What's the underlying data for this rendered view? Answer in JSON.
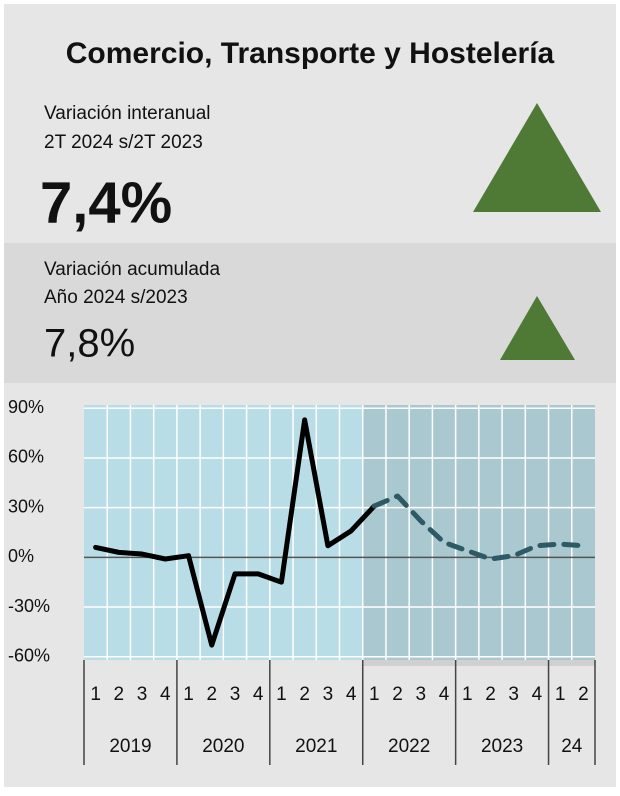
{
  "header": {
    "title": "Comercio, Transporte y Hostelería"
  },
  "kpis": [
    {
      "lines": [
        "Variación interanual",
        "2T 2024 s/2T 2023"
      ],
      "value": "7,4%"
    },
    {
      "lines": [
        "Variación acumulada",
        "Año 2024 s/2023"
      ],
      "value": "7,8%"
    }
  ],
  "chart_data": {
    "type": "line",
    "categories": [
      "1",
      "2",
      "3",
      "4",
      "1",
      "2",
      "3",
      "4",
      "1",
      "2",
      "3",
      "4",
      "1",
      "2",
      "3",
      "4",
      "1",
      "2",
      "3",
      "4",
      "1",
      "2"
    ],
    "groups": [
      {
        "label": "2019",
        "span": 4
      },
      {
        "label": "2020",
        "span": 4
      },
      {
        "label": "2021",
        "span": 4
      },
      {
        "label": "2022",
        "span": 4
      },
      {
        "label": "2023",
        "span": 4
      },
      {
        "label": "24",
        "span": 2
      }
    ],
    "values": [
      6,
      3,
      2,
      -1,
      1,
      -53,
      -10,
      -10,
      -15,
      83,
      7,
      16,
      31,
      37,
      22,
      9,
      4,
      -1,
      1,
      7,
      8,
      7
    ],
    "color": "#000000",
    "dashed_color": "#2d5a64",
    "dashed_from": 12,
    "ylim": [
      -62,
      92
    ],
    "yticks": [
      {
        "value": -60,
        "label": "-60%"
      },
      {
        "value": -30,
        "label": "-30%"
      },
      {
        "value": 0,
        "label": "0%"
      },
      {
        "value": 30,
        "label": "30%"
      },
      {
        "value": 60,
        "label": "60%"
      },
      {
        "value": 90,
        "label": "90%"
      }
    ],
    "grid": true
  }
}
